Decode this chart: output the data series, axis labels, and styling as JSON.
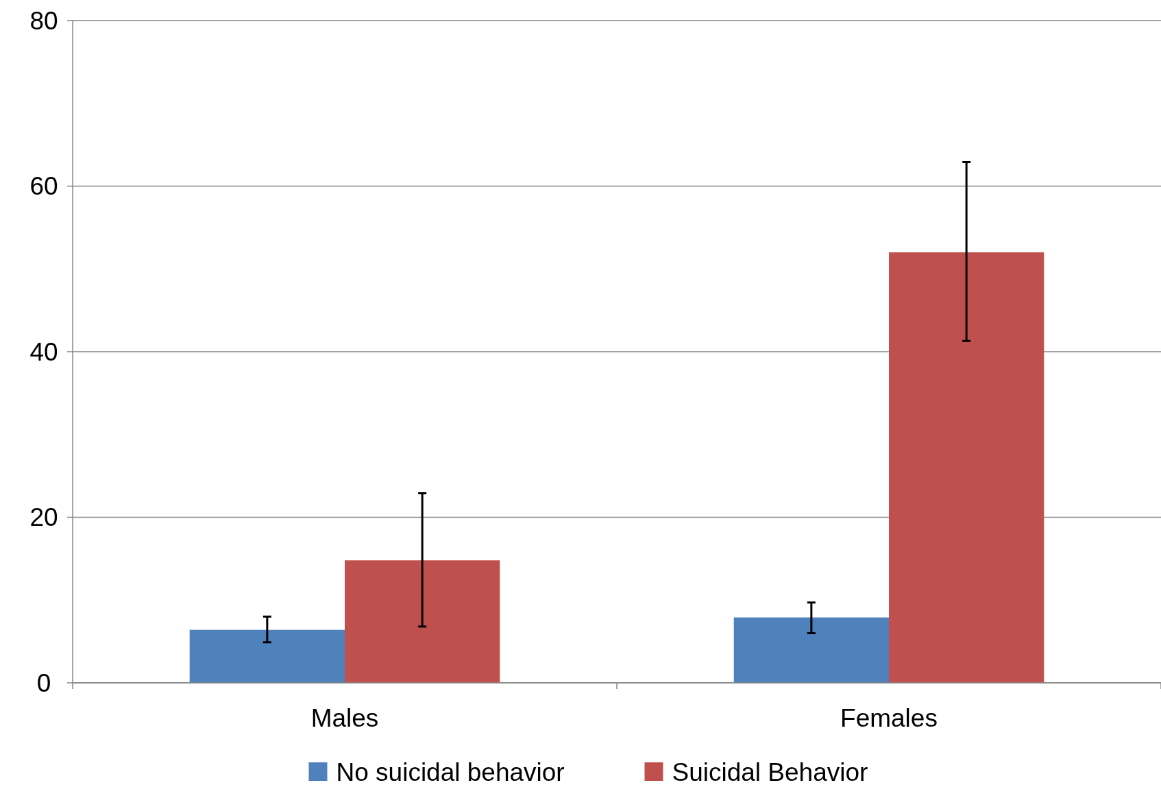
{
  "chart_data": {
    "type": "bar",
    "categories": [
      "Males",
      "Females"
    ],
    "series": [
      {
        "name": "No suicidal behavior",
        "color": "#4f81bd",
        "values": [
          6.4,
          7.9
        ],
        "errors": [
          [
            4.9,
            8.0
          ],
          [
            6.0,
            9.7
          ]
        ]
      },
      {
        "name": "Suicidal Behavior",
        "color": "#c0504d",
        "values": [
          14.8,
          52.0
        ],
        "errors": [
          [
            6.8,
            22.9
          ],
          [
            41.3,
            62.9
          ]
        ]
      }
    ],
    "ylim": [
      0,
      80
    ],
    "yticks": [
      0,
      20,
      40,
      60,
      80
    ],
    "grid": "y",
    "legend": "bottom"
  }
}
